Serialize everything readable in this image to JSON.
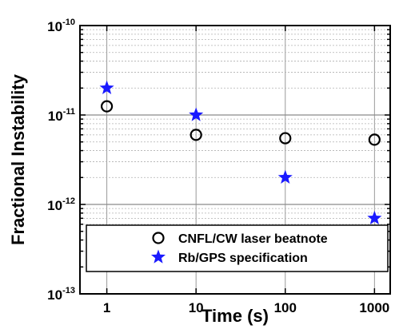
{
  "chart_data": {
    "type": "scatter",
    "xlabel": "Time (s)",
    "ylabel": "Fractional Instability",
    "xscale": "log",
    "yscale": "log",
    "xlim": [
      0.5,
      1500
    ],
    "ylim": [
      1e-13,
      1e-10
    ],
    "grid": true,
    "legend_position": "bottom",
    "x_ticks": [
      {
        "value": 1,
        "label": "1"
      },
      {
        "value": 10,
        "label": "10"
      },
      {
        "value": 100,
        "label": "100"
      },
      {
        "value": 1000,
        "label": "1000"
      }
    ],
    "y_ticks": [
      {
        "value": 1e-13,
        "base": "10",
        "exponent": "-13"
      },
      {
        "value": 1e-12,
        "base": "10",
        "exponent": "-12"
      },
      {
        "value": 1e-11,
        "base": "10",
        "exponent": "-11"
      },
      {
        "value": 1e-10,
        "base": "10",
        "exponent": "-10"
      }
    ],
    "series": [
      {
        "name": "CNFL/CW laser beatnote",
        "marker": "circle",
        "color": "#000000",
        "x": [
          1,
          10,
          100,
          1000
        ],
        "y": [
          1.25e-11,
          6e-12,
          5.5e-12,
          5.3e-12
        ]
      },
      {
        "name": "Rb/GPS specification",
        "marker": "star",
        "color": "#1a1aff",
        "x": [
          1,
          10,
          100,
          1000
        ],
        "y": [
          2e-11,
          1e-11,
          2e-12,
          7e-13
        ]
      }
    ]
  }
}
